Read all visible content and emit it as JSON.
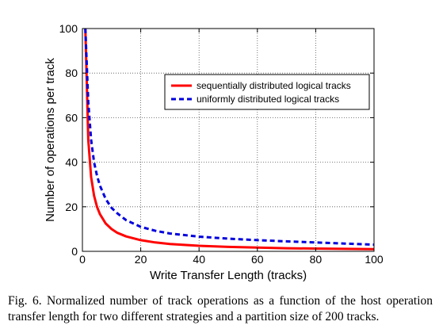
{
  "chart_data": {
    "type": "line",
    "xlabel": "Write Transfer Length (tracks)",
    "ylabel": "Number of operations per track",
    "xlim": [
      0,
      100
    ],
    "ylim": [
      0,
      100
    ],
    "xticks": [
      "0",
      "20",
      "40",
      "60",
      "80",
      "100"
    ],
    "yticks": [
      "0",
      "20",
      "40",
      "60",
      "80",
      "100"
    ],
    "grid": true,
    "legend_position": "top-right",
    "series": [
      {
        "name": "sequentially distributed logical tracks",
        "color": "#ff0000",
        "style": "solid",
        "x": [
          1,
          2,
          3,
          4,
          5,
          6,
          8,
          10,
          12,
          15,
          20,
          25,
          30,
          40,
          50,
          60,
          70,
          80,
          90,
          100
        ],
        "y": [
          100,
          50,
          33.3,
          25,
          20,
          16.7,
          12.5,
          10,
          8.3,
          6.7,
          5,
          4,
          3.3,
          2.5,
          2,
          1.7,
          1.4,
          1.25,
          1.1,
          1
        ]
      },
      {
        "name": "uniformly distributed logical tracks",
        "color": "#0000dd",
        "style": "dashed",
        "x": [
          1,
          2,
          3,
          4,
          5,
          6,
          8,
          10,
          12,
          15,
          20,
          25,
          30,
          40,
          50,
          60,
          70,
          80,
          90,
          100
        ],
        "y": [
          100,
          67,
          50,
          40,
          34,
          29.5,
          23.5,
          19.5,
          17,
          14,
          11,
          9.2,
          8,
          6.6,
          5.7,
          5,
          4.5,
          4,
          3.5,
          3
        ]
      }
    ]
  },
  "caption": "Fig. 6.   Normalized number of track operations as a function of the host operation transfer length for two different strategies and a partition size of 200 tracks."
}
